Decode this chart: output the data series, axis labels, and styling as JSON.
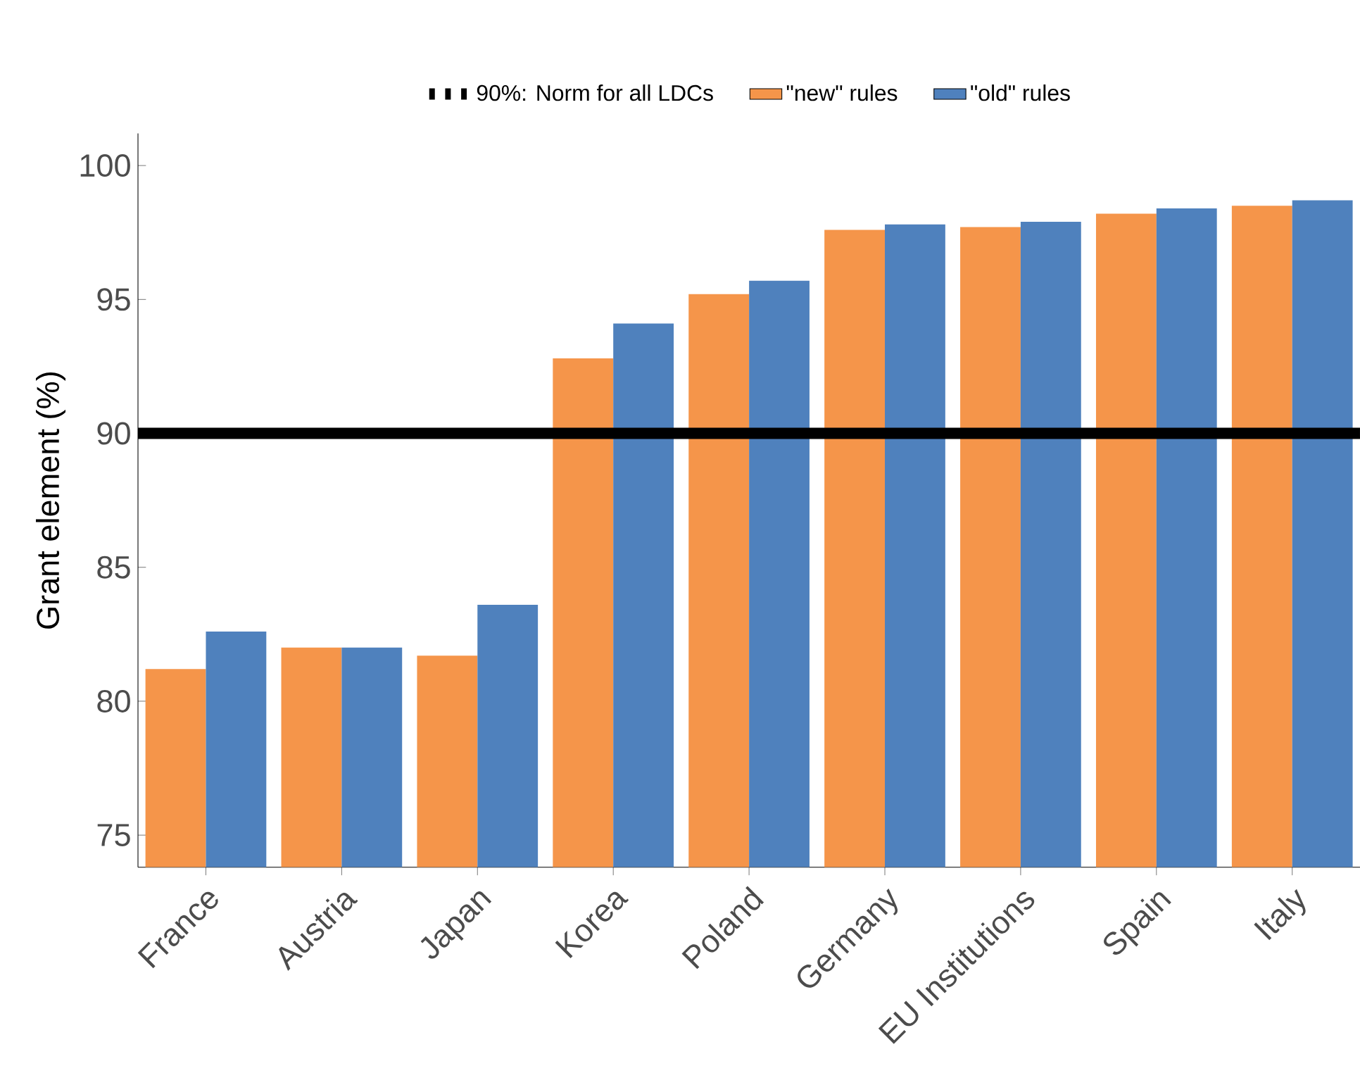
{
  "chart_data": {
    "type": "bar",
    "ylabel": "Grant element (%)",
    "categories": [
      "France",
      "Austria",
      "Japan",
      "Korea",
      "Poland",
      "Germany",
      "EU Institutions",
      "Spain",
      "Italy"
    ],
    "series": [
      {
        "name": "\"new\" rules",
        "color": "#f5954a",
        "values": [
          81.2,
          82.0,
          81.7,
          92.8,
          95.2,
          97.6,
          97.7,
          98.2,
          98.5
        ]
      },
      {
        "name": "\"old\" rules",
        "color": "#4f81bd",
        "values": [
          82.6,
          82.0,
          83.6,
          94.1,
          95.7,
          97.8,
          97.9,
          98.4,
          98.7
        ]
      }
    ],
    "ylim": [
      73.8,
      101.2
    ],
    "yticks": [
      75,
      80,
      85,
      90,
      95,
      100
    ],
    "ref_lines": [
      {
        "axis": "y",
        "value": 90,
        "label": "90%: Norm for all LDCs",
        "color": "#000000"
      }
    ],
    "legend": "top"
  }
}
